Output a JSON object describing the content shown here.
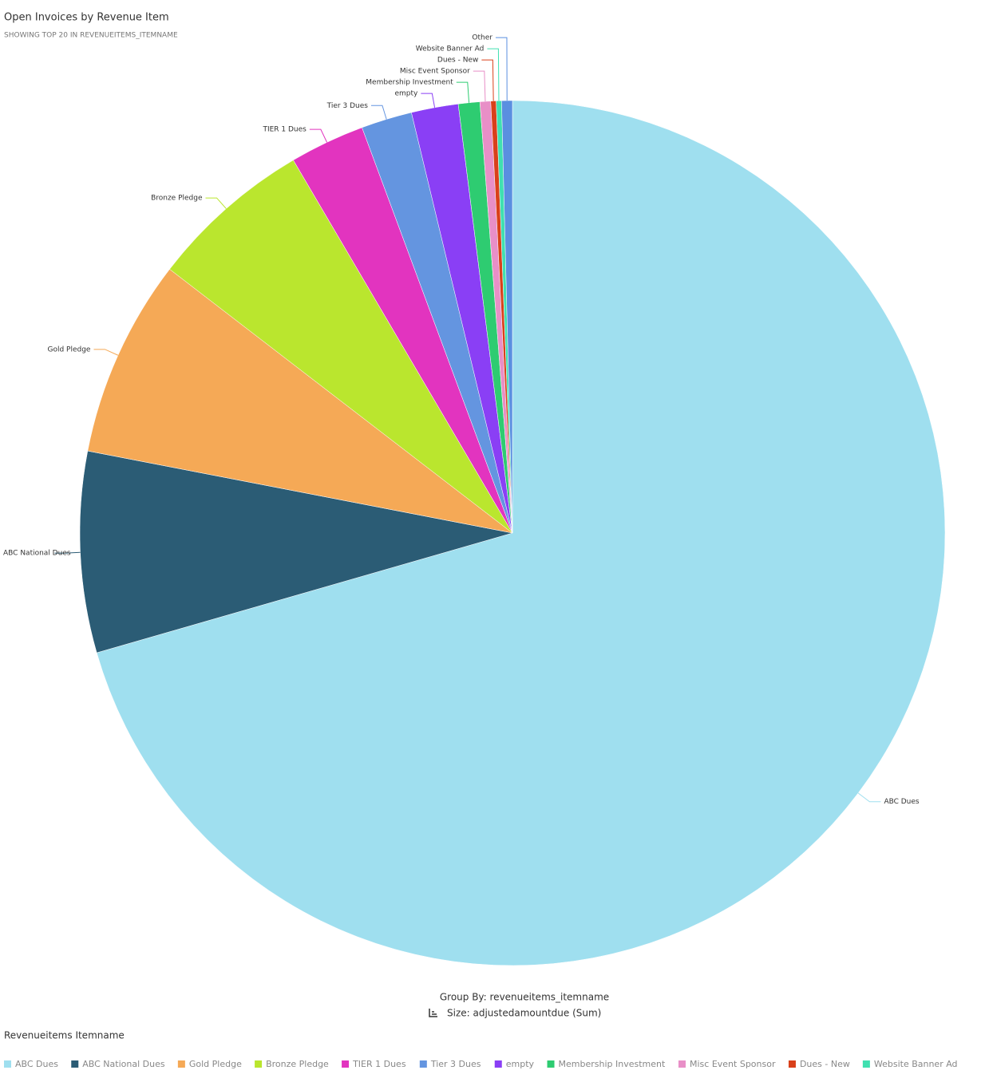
{
  "chart_data": {
    "type": "pie",
    "title": "Open Invoices by Revenue Item",
    "subtitle": "SHOWING TOP 20 IN REVENUEITEMS_ITEMNAME",
    "group_by": "Group By: revenueitems_itemname",
    "size_label": "Size: adjustedamountdue (Sum)",
    "legend_title": "Revenueitems Itemname",
    "categories": [
      "ABC Dues",
      "ABC National Dues",
      "Gold Pledge",
      "Bronze Pledge",
      "TIER 1 Dues",
      "Tier 3 Dues",
      "empty",
      "Membership Investment",
      "Misc Event Sponsor",
      "Dues - New",
      "Website Banner Ad",
      "Other"
    ],
    "values": [
      70.5,
      7.5,
      7.4,
      6.1,
      2.8,
      1.9,
      1.75,
      0.8,
      0.4,
      0.2,
      0.2,
      0.4
    ],
    "colors": [
      "#9fdfef",
      "#2b5c75",
      "#f5a956",
      "#bae62e",
      "#e234bf",
      "#6495e0",
      "#8a3ff5",
      "#2ecc71",
      "#e88fc7",
      "#d9401a",
      "#40e0b0",
      "#5a8fe0"
    ]
  }
}
